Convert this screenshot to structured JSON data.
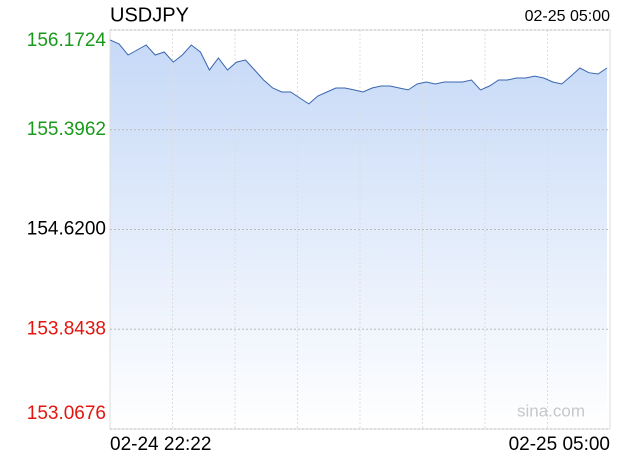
{
  "chart_data": {
    "type": "line",
    "title": "USDJPY",
    "timestamp": "02-25 05:00",
    "watermark": "sina.com",
    "categories": [
      "02-24 22:22",
      null,
      null,
      null,
      null,
      null,
      null,
      null,
      null,
      null,
      null,
      null,
      null,
      null,
      null,
      null,
      null,
      null,
      null,
      null,
      null,
      null,
      null,
      null,
      null,
      null,
      null,
      null,
      null,
      null,
      null,
      null,
      null,
      null,
      null,
      null,
      null,
      null,
      null,
      null,
      null,
      null,
      null,
      null,
      null,
      null,
      null,
      null,
      null,
      null,
      null,
      null,
      null,
      null,
      null,
      "02-25 05:00"
    ],
    "series": [
      {
        "name": "USDJPY",
        "color": "#3a66b0",
        "values": [
          156.095,
          156.064,
          155.978,
          156.017,
          156.056,
          155.978,
          156.001,
          155.923,
          155.978,
          156.056,
          156.001,
          155.861,
          155.955,
          155.861,
          155.923,
          155.939,
          155.861,
          155.783,
          155.721,
          155.69,
          155.69,
          155.643,
          155.597,
          155.659,
          155.69,
          155.721,
          155.721,
          155.706,
          155.69,
          155.721,
          155.737,
          155.737,
          155.721,
          155.706,
          155.752,
          155.768,
          155.752,
          155.768,
          155.768,
          155.768,
          155.783,
          155.706,
          155.737,
          155.783,
          155.783,
          155.799,
          155.799,
          155.814,
          155.799,
          155.768,
          155.752,
          155.814,
          155.877,
          155.84,
          155.83,
          155.877
        ]
      }
    ],
    "ylim": [
      153.0676,
      156.1724
    ],
    "yticks": [
      153.0676,
      153.8438,
      {
        "value": 154.62,
        "label": "154.6200"
      },
      155.3962,
      156.1724
    ],
    "ytick_colors": [
      "#e3150e",
      "#e3150e",
      "#000000",
      "#1a9a1a",
      "#1a9a1a"
    ],
    "grid": true
  }
}
